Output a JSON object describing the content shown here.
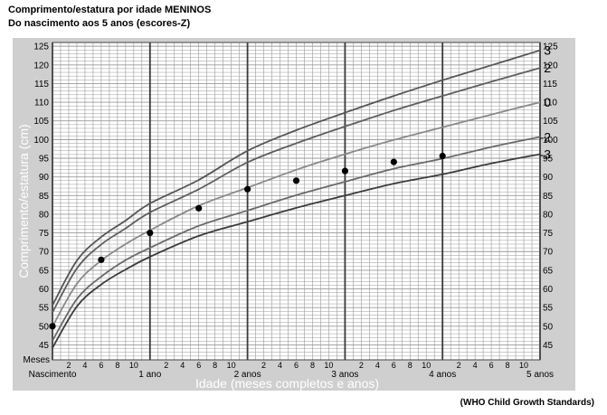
{
  "title": "Comprimento/estatura por idade MENINOS",
  "subtitle": "Do nascimento aos 5 anos (escores-Z)",
  "source": "(WHO Child Growth Standards)",
  "chart_data": {
    "type": "line",
    "title": "Comprimento/estatura por idade MENINOS",
    "subtitle": "Do nascimento aos 5 anos (escores-Z)",
    "ylabel": "Comprimento/estatura (cm)",
    "xlabel": "Idade (meses completos e anos)",
    "months_label": "Meses",
    "xlim": [
      0,
      60
    ],
    "ylim": [
      41,
      126
    ],
    "y_ticks": [
      45,
      50,
      55,
      60,
      65,
      70,
      75,
      80,
      85,
      90,
      95,
      100,
      105,
      110,
      115,
      120,
      125
    ],
    "x_month_ticks": [
      2,
      4,
      6,
      8,
      10
    ],
    "year_labels": [
      {
        "x": 0,
        "label": "Nascimento"
      },
      {
        "x": 12,
        "label": "1 ano"
      },
      {
        "x": 24,
        "label": "2 anos"
      },
      {
        "x": 36,
        "label": "3 anos"
      },
      {
        "x": 48,
        "label": "4 anos"
      },
      {
        "x": 60,
        "label": "5 anos"
      }
    ],
    "grid": true,
    "x": [
      0,
      3,
      6,
      9,
      12,
      18,
      24,
      30,
      36,
      42,
      48,
      54,
      60
    ],
    "series": [
      {
        "name": "3",
        "values": [
          55.6,
          67.6,
          73.9,
          78.3,
          82.9,
          89.2,
          97.0,
          102.5,
          107.2,
          111.7,
          115.9,
          119.9,
          123.9
        ]
      },
      {
        "name": "2",
        "values": [
          53.7,
          65.5,
          71.9,
          76.2,
          80.5,
          86.7,
          93.9,
          99.0,
          103.5,
          107.8,
          111.7,
          115.5,
          119.2
        ]
      },
      {
        "name": "0",
        "values": [
          49.9,
          61.4,
          67.6,
          72.0,
          75.7,
          82.3,
          87.1,
          91.9,
          96.1,
          99.9,
          103.3,
          106.7,
          110.0
        ]
      },
      {
        "name": "-2",
        "values": [
          46.1,
          57.3,
          63.3,
          67.7,
          71.0,
          76.9,
          81.0,
          85.1,
          88.7,
          92.2,
          94.9,
          98.0,
          100.7
        ]
      },
      {
        "name": "-3",
        "values": [
          44.2,
          55.3,
          61.2,
          65.2,
          68.6,
          74.2,
          78.0,
          81.7,
          85.0,
          88.2,
          90.7,
          93.6,
          96.1
        ]
      }
    ],
    "points": [
      {
        "x": 0,
        "y": 50.0
      },
      {
        "x": 6,
        "y": 67.8
      },
      {
        "x": 12,
        "y": 75.0
      },
      {
        "x": 18,
        "y": 81.6
      },
      {
        "x": 24,
        "y": 86.7
      },
      {
        "x": 30,
        "y": 89.0
      },
      {
        "x": 36,
        "y": 91.6
      },
      {
        "x": 42,
        "y": 94.0
      },
      {
        "x": 48,
        "y": 95.6
      }
    ],
    "colors": {
      "frame_bg": "#cfcfcf",
      "plot_bg": "#ffffff",
      "grid_minor": "#9a9a9a",
      "grid_major": "#3a3a3a",
      "curve_3": "#555555",
      "curve_2": "#5f5f5f",
      "curve_0": "#8a8a8a",
      "curve_m2": "#6a6a6a",
      "curve_m3": "#3c3c3c",
      "points": "#000000"
    }
  }
}
